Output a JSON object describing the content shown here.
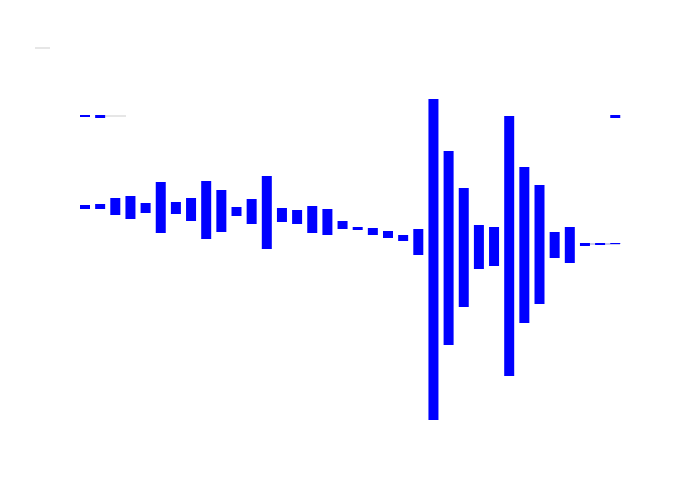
{
  "chart_data": {
    "type": "floating-bar",
    "ylim": [
      0,
      500
    ],
    "series": [
      {
        "color": "#0000ff",
        "low": [
          291,
          291,
          285,
          281,
          287,
          267,
          286,
          279,
          261,
          268,
          284,
          276,
          251,
          278,
          276,
          267,
          265,
          271,
          270,
          265,
          262,
          259,
          245,
          80,
          155,
          193,
          231,
          234,
          124,
          177,
          196,
          242,
          237,
          254,
          255,
          256
        ],
        "high": [
          295,
          296,
          302,
          304,
          297,
          318,
          298,
          302,
          319,
          310,
          293,
          301,
          324,
          292,
          290,
          294,
          291,
          279,
          273,
          272,
          269,
          265,
          271,
          401,
          349,
          312,
          275,
          273,
          384,
          333,
          315,
          268,
          273,
          257,
          257,
          257
        ]
      },
      {
        "color": "#0000ff",
        "low": [
          383,
          382,
          null,
          null,
          null,
          null,
          null,
          null,
          null,
          null,
          null,
          null,
          null,
          null,
          null,
          null,
          null,
          null,
          null,
          null,
          null,
          null,
          null,
          null,
          null,
          null,
          null,
          null,
          null,
          null,
          null,
          null,
          null,
          null,
          null,
          382
        ],
        "high": [
          385,
          385,
          null,
          null,
          null,
          null,
          null,
          null,
          null,
          null,
          null,
          null,
          null,
          null,
          null,
          null,
          null,
          null,
          null,
          null,
          null,
          null,
          null,
          null,
          null,
          null,
          null,
          null,
          null,
          null,
          null,
          null,
          null,
          null,
          null,
          385
        ]
      }
    ]
  }
}
